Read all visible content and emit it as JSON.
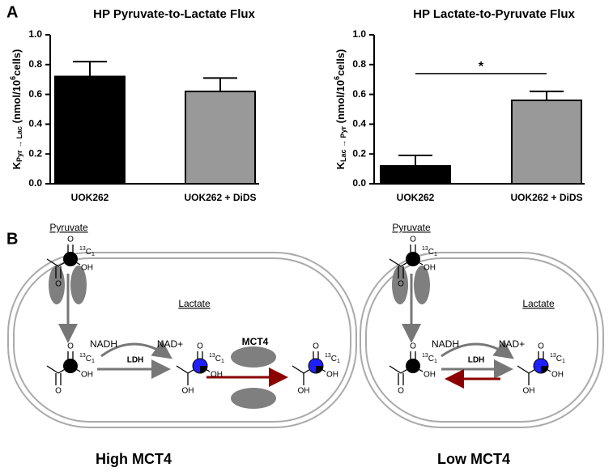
{
  "panel_labels": [
    "A",
    "B"
  ],
  "chart_data": [
    {
      "type": "bar",
      "title": "HP Pyruvate-to-Lactate Flux",
      "ylabel": {
        "main": "K",
        "sub": "Pyr → Lac",
        "unit": " (nmol/10",
        "sup": "6",
        "end": "cells)"
      },
      "categories": [
        "UOK262",
        "UOK262 + DiDS"
      ],
      "values": [
        0.72,
        0.62
      ],
      "errors": [
        0.1,
        0.09
      ],
      "colors": [
        "#000000",
        "#999999"
      ],
      "ylim": [
        0,
        1
      ],
      "yticks": [
        {
          "value": 0,
          "label": "0.0"
        },
        0.2,
        0.4,
        0.6,
        0.8,
        {
          "value": 1,
          "label": "1.0"
        }
      ]
    },
    {
      "type": "bar",
      "title": "HP Lactate-to-Pyruvate Flux",
      "ylabel": {
        "main": "K",
        "sub": "Lac → Pyr",
        "unit": " (nmol/10",
        "sup": "6",
        "end": "cells)"
      },
      "categories": [
        "UOK262",
        "UOK262 + DiDS"
      ],
      "values": [
        0.12,
        0.56
      ],
      "errors": [
        0.07,
        0.06
      ],
      "colors": [
        "#000000",
        "#999999"
      ],
      "significance": "*",
      "ylim": [
        0,
        1
      ],
      "yticks": [
        {
          "value": 0,
          "label": "0.0"
        },
        0.2,
        0.4,
        0.6,
        0.8,
        {
          "value": 1,
          "label": "1.0"
        }
      ]
    }
  ],
  "diagram": {
    "atoms": {
      "o": "O",
      "isotope": "13",
      "c": "C",
      "sub": "1",
      "oh": "OH"
    },
    "cells": [
      {
        "title": "High MCT4",
        "pyruvate": "Pyruvate",
        "lactate": "Lactate",
        "nadh": "NADH",
        "nad": "NAD+",
        "enzyme": "LDH",
        "transporter": "MCT4"
      },
      {
        "title": "Low MCT4",
        "pyruvate": "Pyruvate",
        "lactate": "Lactate",
        "nadh": "NADH",
        "nad": "NAD+",
        "enzyme": "LDH"
      }
    ]
  }
}
